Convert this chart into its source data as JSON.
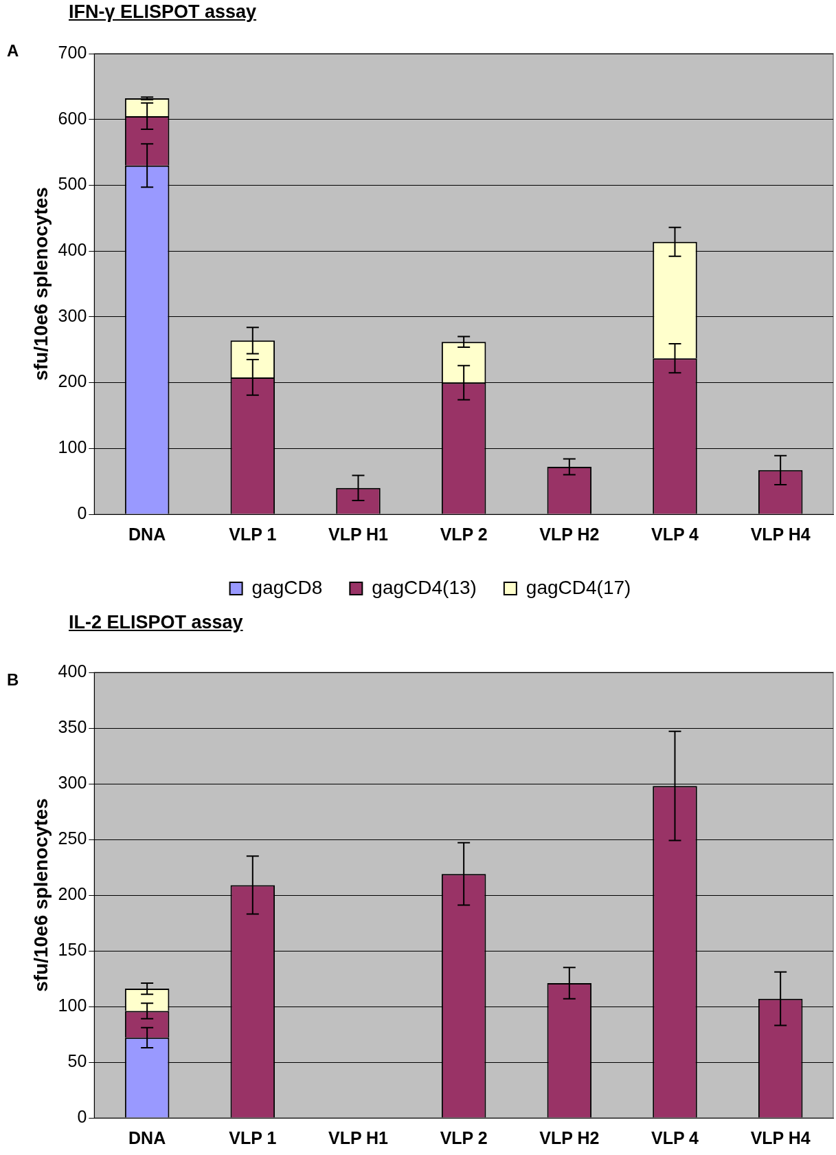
{
  "chart_data": [
    {
      "type": "bar",
      "title": "IFN-γ ELISPOT assay",
      "ylabel": "sfu/10e6 splenocytes",
      "annotations": [
        "A"
      ],
      "categories": [
        "DNA",
        "VLP 1",
        "VLP H1",
        "VLP 2",
        "VLP H2",
        "VLP 4",
        "VLP H4"
      ],
      "stacked": true,
      "ylim": [
        0,
        700
      ],
      "yticks": [
        0,
        100,
        200,
        300,
        400,
        500,
        600,
        700
      ],
      "grid": "y",
      "legend": "bottom",
      "series": [
        {
          "name": "gagCD8",
          "color": "#9999ff",
          "values": [
            530,
            null,
            null,
            null,
            null,
            null,
            null
          ],
          "errors": [
            33,
            null,
            null,
            null,
            null,
            null,
            null
          ]
        },
        {
          "name": "gagCD4(13)",
          "color": "#993366",
          "values": [
            75,
            208,
            40,
            200,
            72,
            237,
            67
          ],
          "errors": [
            20,
            27,
            19,
            26,
            12,
            22,
            22
          ]
        },
        {
          "name": "gagCD4(17)",
          "color": "#ffffcc",
          "values": [
            27,
            56,
            null,
            62,
            null,
            177,
            null
          ],
          "errors": [
            2,
            20,
            null,
            8,
            null,
            22,
            null
          ]
        }
      ]
    },
    {
      "type": "bar",
      "title": "IL-2 ELISPOT assay",
      "ylabel": "sfu/10e6 splenocytes",
      "annotations": [
        "B"
      ],
      "categories": [
        "DNA",
        "VLP 1",
        "VLP H1",
        "VLP 2",
        "VLP H2",
        "VLP 4",
        "VLP H4"
      ],
      "stacked": true,
      "ylim": [
        0,
        400
      ],
      "yticks": [
        0,
        50,
        100,
        150,
        200,
        250,
        300,
        350,
        400
      ],
      "grid": "y",
      "series": [
        {
          "color": "#9999ff",
          "values": [
            72,
            null,
            null,
            null,
            null,
            null,
            null
          ],
          "errors": [
            9,
            null,
            null,
            null,
            null,
            null,
            null
          ]
        },
        {
          "color": "#993366",
          "values": [
            24,
            209,
            null,
            219,
            121,
            298,
            107
          ],
          "errors": [
            7,
            26,
            null,
            28,
            14,
            49,
            24
          ]
        },
        {
          "color": "#ffffcc",
          "values": [
            20,
            null,
            null,
            null,
            null,
            null,
            null
          ],
          "errors": [
            5,
            null,
            null,
            null,
            null,
            null,
            null
          ]
        }
      ]
    }
  ]
}
